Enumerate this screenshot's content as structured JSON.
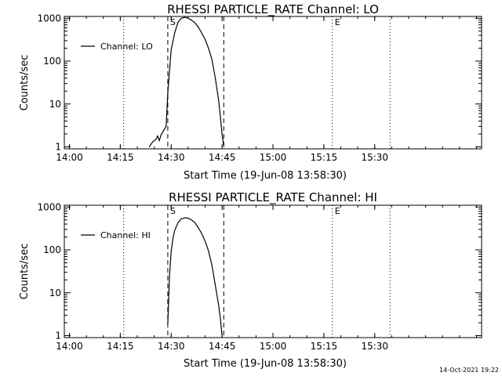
{
  "timestamp": "14-Oct-2021 19:22",
  "chart_data": [
    {
      "type": "line",
      "title": "RHESSI PARTICLE_RATE Channel: LO",
      "xlabel": "Start Time (19-Jun-08 13:58:30)",
      "ylabel": "Counts/sec",
      "y_scale": "log",
      "xlim": [
        "13:58:30",
        "16:01:30"
      ],
      "ylim": [
        0.9,
        1100
      ],
      "x_tick_labels": [
        "14:00",
        "14:15",
        "14:30",
        "14:45",
        "15:00",
        "15:15",
        "15:30"
      ],
      "y_tick_labels": [
        "1",
        "10",
        "100",
        "1000"
      ],
      "legend": "top-left",
      "markers": [
        {
          "label": "S",
          "time": "14:29:00",
          "style": "dashed"
        },
        {
          "label": "",
          "time": "14:45:30",
          "style": "dashed"
        },
        {
          "label": "E",
          "time": "15:17:30",
          "style": "dotted"
        },
        {
          "label": "",
          "time": "14:16:00",
          "style": "dotted"
        },
        {
          "label": "",
          "time": "15:34:30",
          "style": "dotted"
        }
      ],
      "series": [
        {
          "name": "Channel: LO",
          "color": "#000000",
          "x": [
            "14:23:30",
            "14:24:30",
            "14:25:30",
            "14:26:00",
            "14:26:30",
            "14:27:00",
            "14:27:30",
            "14:28:00",
            "14:28:30",
            "14:29:00",
            "14:29:30",
            "14:30:00",
            "14:31:00",
            "14:32:00",
            "14:33:00",
            "14:34:00",
            "14:35:00",
            "14:36:00",
            "14:37:00",
            "14:38:00",
            "14:39:00",
            "14:40:00",
            "14:41:00",
            "14:42:00",
            "14:43:00",
            "14:44:00",
            "14:44:30",
            "14:45:00",
            "14:45:30"
          ],
          "y": [
            1.0,
            1.3,
            1.5,
            1.8,
            1.4,
            1.9,
            2.2,
            2.6,
            3.0,
            18,
            60,
            180,
            450,
            800,
            1000,
            1050,
            1000,
            900,
            780,
            620,
            450,
            320,
            200,
            110,
            40,
            12,
            5,
            2,
            1.0
          ]
        }
      ]
    },
    {
      "type": "line",
      "title": "RHESSI PARTICLE_RATE Channel: HI",
      "xlabel": "Start Time (19-Jun-08 13:58:30)",
      "ylabel": "Counts/sec",
      "y_scale": "log",
      "xlim": [
        "13:58:30",
        "16:01:30"
      ],
      "ylim": [
        0.9,
        1100
      ],
      "x_tick_labels": [
        "14:00",
        "14:15",
        "14:30",
        "14:45",
        "15:00",
        "15:15",
        "15:30"
      ],
      "y_tick_labels": [
        "1",
        "10",
        "100",
        "1000"
      ],
      "legend": "top-left",
      "markers": [
        {
          "label": "S",
          "time": "14:29:00",
          "style": "dashed"
        },
        {
          "label": "",
          "time": "14:45:30",
          "style": "dashed"
        },
        {
          "label": "E",
          "time": "15:17:30",
          "style": "dotted"
        },
        {
          "label": "",
          "time": "14:16:00",
          "style": "dotted"
        },
        {
          "label": "",
          "time": "15:34:30",
          "style": "dotted"
        }
      ],
      "series": [
        {
          "name": "Channel: HI",
          "color": "#000000",
          "x": [
            "14:29:00",
            "14:29:30",
            "14:30:00",
            "14:30:30",
            "14:31:00",
            "14:32:00",
            "14:33:00",
            "14:34:00",
            "14:35:00",
            "14:36:00",
            "14:37:00",
            "14:38:00",
            "14:39:00",
            "14:40:00",
            "14:41:00",
            "14:42:00",
            "14:43:00",
            "14:44:00",
            "14:44:30",
            "14:45:00"
          ],
          "y": [
            1.8,
            25,
            90,
            180,
            280,
            430,
            530,
            560,
            550,
            500,
            430,
            330,
            240,
            160,
            95,
            45,
            15,
            5,
            2.5,
            1.0
          ]
        }
      ]
    }
  ]
}
